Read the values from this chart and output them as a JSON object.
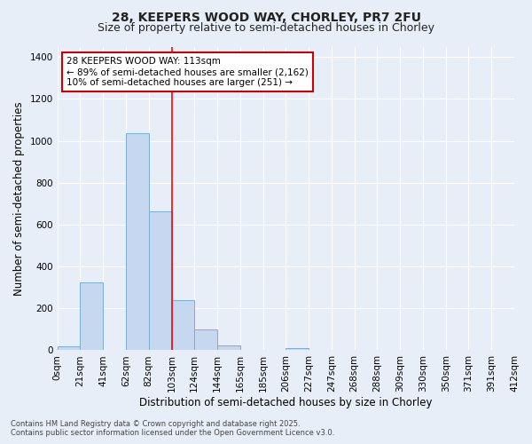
{
  "title_line1": "28, KEEPERS WOOD WAY, CHORLEY, PR7 2FU",
  "title_line2": "Size of property relative to semi-detached houses in Chorley",
  "xlabel": "Distribution of semi-detached houses by size in Chorley",
  "ylabel": "Number of semi-detached properties",
  "annotation_line1": "28 KEEPERS WOOD WAY: 113sqm",
  "annotation_line2": "← 89% of semi-detached houses are smaller (2,162)",
  "annotation_line3": "10% of semi-detached houses are larger (251) →",
  "footnote1": "Contains HM Land Registry data © Crown copyright and database right 2025.",
  "footnote2": "Contains public sector information licensed under the Open Government Licence v3.0.",
  "bin_labels": [
    "0sqm",
    "21sqm",
    "41sqm",
    "62sqm",
    "82sqm",
    "103sqm",
    "124sqm",
    "144sqm",
    "165sqm",
    "185sqm",
    "206sqm",
    "227sqm",
    "247sqm",
    "268sqm",
    "288sqm",
    "309sqm",
    "330sqm",
    "350sqm",
    "371sqm",
    "391sqm",
    "412sqm"
  ],
  "bar_values": [
    20,
    325,
    0,
    1035,
    665,
    240,
    100,
    25,
    0,
    0,
    10,
    0,
    0,
    0,
    0,
    0,
    0,
    0,
    0,
    0
  ],
  "bar_color": "#c5d8f0",
  "bar_edge_color": "#7aadd4",
  "reference_line_x": 5,
  "ylim": [
    0,
    1450
  ],
  "yticks": [
    0,
    200,
    400,
    600,
    800,
    1000,
    1200,
    1400
  ],
  "bg_color": "#e8eef8",
  "grid_color": "#ffffff",
  "annotation_box_color": "#ffffff",
  "annotation_box_edge_color": "#cc0000",
  "title_fontsize": 10,
  "subtitle_fontsize": 9,
  "axis_label_fontsize": 8.5,
  "tick_fontsize": 7.5,
  "annotation_fontsize": 7.5
}
